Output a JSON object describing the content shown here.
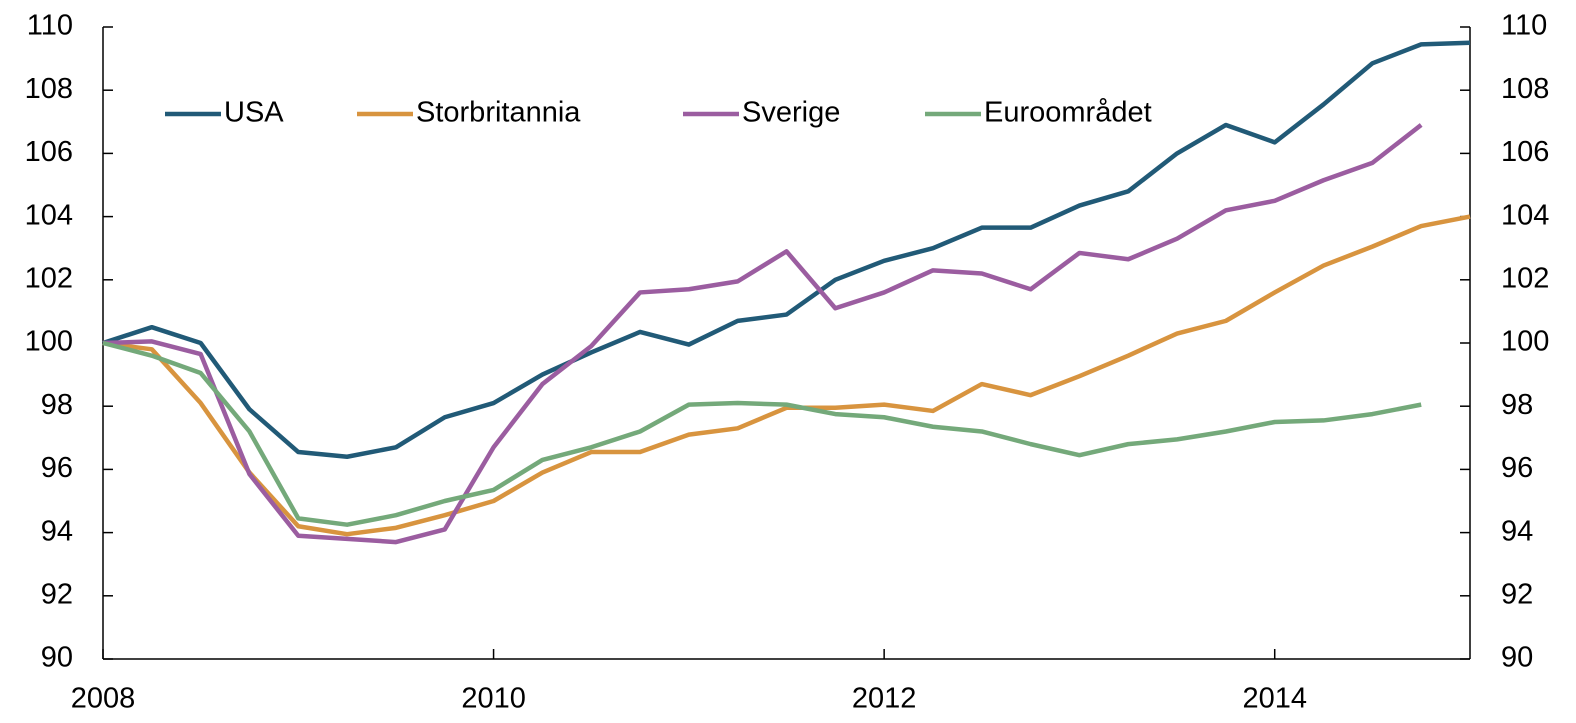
{
  "chart_data": {
    "type": "line",
    "x": [
      2008,
      2008.25,
      2008.5,
      2008.75,
      2009,
      2009.25,
      2009.5,
      2009.75,
      2010,
      2010.25,
      2010.5,
      2010.75,
      2011,
      2011.25,
      2011.5,
      2011.75,
      2012,
      2012.25,
      2012.5,
      2012.75,
      2013,
      2013.25,
      2013.5,
      2013.75,
      2014,
      2014.25,
      2014.5,
      2014.75,
      2015
    ],
    "series": [
      {
        "name": "USA",
        "color": "#215a77",
        "values": [
          100,
          100.5,
          100,
          97.9,
          96.55,
          96.4,
          96.7,
          97.65,
          98.1,
          99.0,
          99.7,
          100.35,
          99.95,
          100.7,
          100.9,
          102.0,
          102.6,
          103.0,
          103.65,
          103.65,
          104.35,
          104.8,
          106.0,
          106.9,
          106.35,
          107.55,
          108.85,
          109.45,
          109.5
        ]
      },
      {
        "name": "Storbritannia",
        "color": "#d8943f",
        "values": [
          100,
          99.8,
          98.1,
          95.9,
          94.2,
          93.95,
          94.15,
          94.55,
          95.0,
          95.9,
          96.55,
          96.55,
          97.1,
          97.3,
          97.95,
          97.95,
          98.05,
          97.85,
          98.7,
          98.35,
          98.95,
          99.6,
          100.3,
          100.7,
          101.6,
          102.45,
          103.05,
          103.7,
          104.0
        ]
      },
      {
        "name": "Sverige",
        "color": "#9b5da0",
        "values": [
          100,
          100.05,
          99.65,
          95.85,
          93.9,
          93.8,
          93.7,
          94.1,
          96.7,
          98.7,
          99.9,
          101.6,
          101.7,
          101.95,
          102.9,
          101.1,
          101.6,
          102.3,
          102.2,
          101.7,
          102.85,
          102.65,
          103.3,
          104.2,
          104.5,
          105.15,
          105.7,
          106.9,
          null
        ]
      },
      {
        "name": "Euroområdet",
        "color": "#74a97a",
        "values": [
          100,
          99.6,
          99.05,
          97.2,
          94.45,
          94.25,
          94.55,
          95.0,
          95.35,
          96.3,
          96.7,
          97.2,
          98.05,
          98.1,
          98.05,
          97.75,
          97.65,
          97.35,
          97.2,
          96.8,
          96.45,
          96.8,
          96.95,
          97.2,
          97.5,
          97.55,
          97.75,
          98.05,
          null
        ]
      }
    ],
    "xlim": [
      2008,
      2015
    ],
    "xticks": [
      2008,
      2010,
      2012,
      2014
    ],
    "ylim": [
      90,
      110
    ],
    "yticks": [
      90,
      92,
      94,
      96,
      98,
      100,
      102,
      104,
      106,
      108,
      110
    ],
    "y2lim": [
      90,
      110
    ],
    "y2ticks": [
      90,
      92,
      94,
      96,
      98,
      100,
      102,
      104,
      106,
      108,
      110
    ],
    "legend": "upper left",
    "grid": false
  }
}
